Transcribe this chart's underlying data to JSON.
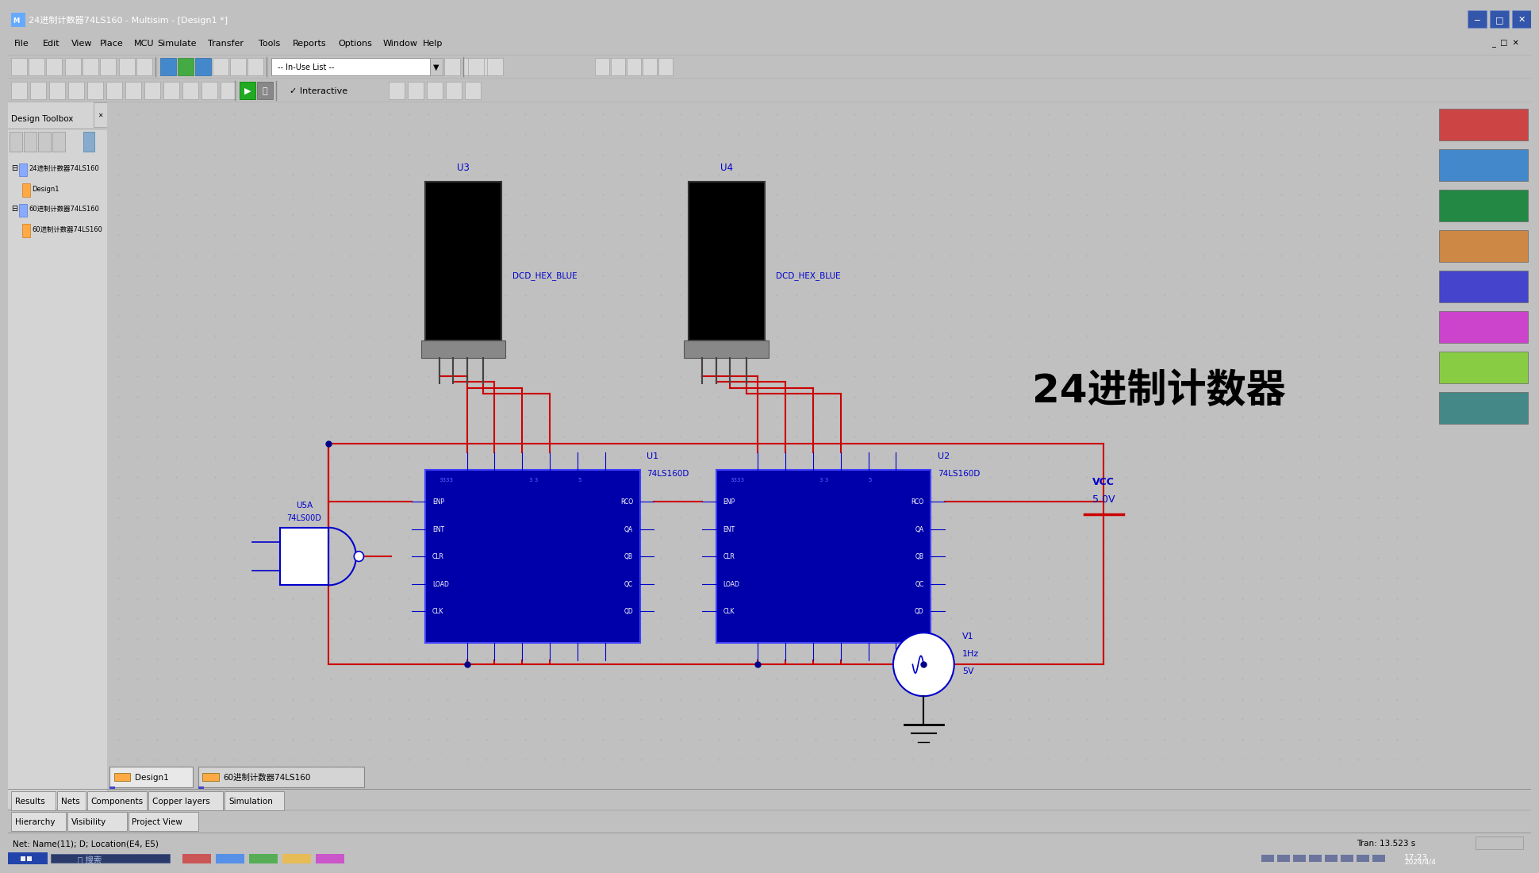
{
  "title_bar": "24进制计数器74LS160 - Multisim - [Design1 *]",
  "menu_items": [
    "File",
    "Edit",
    "View",
    "Place",
    "MCU",
    "Simulate",
    "Transfer",
    "Tools",
    "Reports",
    "Options",
    "Window",
    "Help"
  ],
  "sidebar_title": "Design Toolbox",
  "tree_item1": "24进制计数器74LS160",
  "tree_item2": "Design1",
  "tree_item3": "60进制计数器74LS160",
  "tree_item4": "60进制计数器74LS160",
  "tab1": "Design1",
  "tab2": "60进制计数器74LS160",
  "bottom_tabs": [
    "Hierarchy",
    "Visibility",
    "Project View"
  ],
  "results_tabs": [
    "Results",
    "Nets",
    "Components",
    "Copper layers",
    "Simulation"
  ],
  "status_left": "Net: Name(11); D; Location(E4, E5)",
  "status_right": "Tran: 13.523 s",
  "main_text": "24进制计数器",
  "u3_label": "U3",
  "u4_label": "U4",
  "dcd_label": "DCD_HEX_BLUE",
  "u1_name": "U1",
  "u1_chip": "74LS160D",
  "u2_name": "U2",
  "u2_chip": "74LS160D",
  "u5_name": "U5A",
  "u5_chip": "74LS00D",
  "vcc_label": "VCC",
  "vcc_val": "5.0V",
  "v1_label": "V1",
  "v1_freq": "1Hz",
  "v1_volt": "5V",
  "wire_red": "#cc0000",
  "wire_blue": "#0000cc",
  "chip_face": "#0000aa",
  "chip_edge": "#4040ff",
  "bg_canvas": "#c8c8c8",
  "bg_main": "#d4d4d4",
  "taskbar_bg": "#1c2a5e",
  "time_text": "17:23",
  "date_text": "2024/4/4",
  "pin_left": [
    "ENP",
    "ENT",
    "CLR̄",
    "LOAD",
    "CLK"
  ],
  "pin_right": [
    "RCO",
    "QA",
    "QB",
    "QC",
    "QD"
  ]
}
